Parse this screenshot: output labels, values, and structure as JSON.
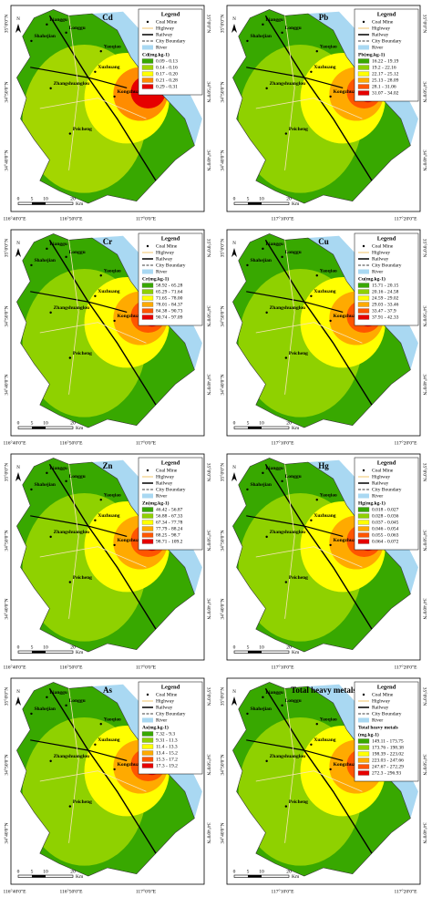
{
  "lon_labels": [
    "116°40'0\"E",
    "116°50'0\"E",
    "117°0'0\"E",
    "117°10'0\"E",
    "117°20'0\"E"
  ],
  "lat_labels": [
    "35°0'0\"N",
    "34°50'0\"N",
    "34°40'0\"N"
  ],
  "legend": {
    "title": "Legend",
    "items": [
      "Coal Mine",
      "Highway",
      "Railway",
      "City Boundary",
      "River"
    ],
    "river_color": "#a9d8f2"
  },
  "places": [
    "Lianggu",
    "Longgu",
    "Shahejian",
    "Yaoqiao",
    "Xuzhuang",
    "Zhangshuanglou",
    "Kongzhuang",
    "Peicheng"
  ],
  "scale": {
    "ticks": [
      "0",
      "5",
      "10",
      "20"
    ],
    "unit": "Km"
  },
  "north": "N",
  "panels": [
    {
      "title": "Cd",
      "legend_title": [
        "Cd(mg.kg-1)"
      ],
      "classes": [
        "0.09 - 0.13",
        "0.14 - 0.16",
        "0.17 - 0.20",
        "0.21 - 0.28",
        "0.29 - 0.31"
      ],
      "colors": [
        "#38a800",
        "#a3d600",
        "#ffff00",
        "#ff8c00",
        "#e60000"
      ]
    },
    {
      "title": "Pb",
      "legend_title": [
        "Pb(mg.kg-1)"
      ],
      "classes": [
        "16.22 - 19.19",
        "19.2 - 22.16",
        "22.17 - 25.12",
        "25.13 - 28.09",
        "28.1 - 31.06",
        "31.07 - 34.02"
      ],
      "colors": [
        "#38a800",
        "#8fd100",
        "#ffff00",
        "#ffaa00",
        "#ff5500",
        "#e60000"
      ]
    },
    {
      "title": "Cr",
      "legend_title": [
        "Cr(mg.kg-1)"
      ],
      "classes": [
        "58.92 - 65.28",
        "65.29 - 71.64",
        "71.65 - 78.00",
        "78.01 - 84.37",
        "84.38 - 90.73",
        "90.74 - 97.09"
      ],
      "colors": [
        "#38a800",
        "#8fd100",
        "#ffff00",
        "#ffaa00",
        "#ff5500",
        "#e60000"
      ]
    },
    {
      "title": "Cu",
      "legend_title": [
        "Cu(mg.kg-1)"
      ],
      "classes": [
        "15.71 - 20.15",
        "20.16 - 24.58",
        "24.59 - 29.02",
        "29.03 - 33.46",
        "33.47 - 37.9",
        "37.91 - 42.33"
      ],
      "colors": [
        "#38a800",
        "#8fd100",
        "#ffff00",
        "#ffaa00",
        "#ff5500",
        "#e60000"
      ]
    },
    {
      "title": "Zn",
      "legend_title": [
        "Zn(mg.kg-1)"
      ],
      "classes": [
        "46.42 - 56.87",
        "56.88 - 67.33",
        "67.34 - 77.78",
        "77.79 - 88.24",
        "88.25 - 98.7",
        "98.71 - 109.2"
      ],
      "colors": [
        "#38a800",
        "#8fd100",
        "#ffff00",
        "#ffaa00",
        "#ff5500",
        "#e60000"
      ]
    },
    {
      "title": "Hg",
      "legend_title": [
        "Hg(mg.kg-1)"
      ],
      "classes": [
        "0.018 - 0.027",
        "0.028 - 0.036",
        "0.037 - 0.045",
        "0.046 - 0.054",
        "0.055 - 0.063",
        "0.064 - 0.072"
      ],
      "colors": [
        "#38a800",
        "#8fd100",
        "#ffff00",
        "#ffaa00",
        "#ff5500",
        "#e60000"
      ]
    },
    {
      "title": "As",
      "legend_title": [
        "As(mg.kg-1)"
      ],
      "classes": [
        "7.32 - 9.3",
        "9.31 - 11.3",
        "11.4 - 13.3",
        "13.4 - 15.2",
        "15.3 - 17.2",
        "17.3 - 19.2"
      ],
      "colors": [
        "#38a800",
        "#8fd100",
        "#ffff00",
        "#ffaa00",
        "#ff5500",
        "#e60000"
      ]
    },
    {
      "title": "Total heavy metals",
      "legend_title": [
        "Total heavy metals",
        "(mg.kg-1)"
      ],
      "classes": [
        "149.11 - 173.75",
        "173.76 - 198.38",
        "198.39 - 223.02",
        "223.03 - 247.66",
        "247.67 - 272.29",
        "272.3 - 296.93"
      ],
      "colors": [
        "#38a800",
        "#8fd100",
        "#ffff00",
        "#ffaa00",
        "#ff5500",
        "#e60000"
      ]
    }
  ]
}
